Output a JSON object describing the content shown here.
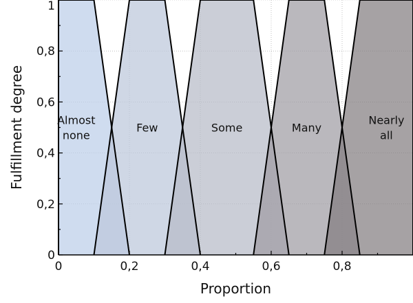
{
  "chart_data": {
    "type": "area",
    "xlabel": "Proportion",
    "ylabel": "Fulfillment degree",
    "xlim": [
      0,
      1
    ],
    "ylim": [
      0,
      1
    ],
    "x_ticks": [
      {
        "value": 0,
        "label": "0"
      },
      {
        "value": 0.2,
        "label": "0,2"
      },
      {
        "value": 0.4,
        "label": "0,4"
      },
      {
        "value": 0.6,
        "label": "0,6"
      },
      {
        "value": 0.8,
        "label": "0,8"
      }
    ],
    "y_ticks": [
      {
        "value": 0,
        "label": "0"
      },
      {
        "value": 0.2,
        "label": "0,2"
      },
      {
        "value": 0.4,
        "label": "0,4"
      },
      {
        "value": 0.6,
        "label": "0,6"
      },
      {
        "value": 0.8,
        "label": "0,8"
      },
      {
        "value": 1,
        "label": "1"
      }
    ],
    "grid": true,
    "series": [
      {
        "name": "Almost none",
        "label_lines": [
          "Almost",
          "none"
        ],
        "x": [
          0,
          0,
          0.1,
          0.2
        ],
        "y": [
          0,
          1,
          1,
          0
        ],
        "color": "#bccfe9"
      },
      {
        "name": "Few",
        "label_lines": [
          "Few"
        ],
        "x": [
          0.1,
          0.2,
          0.3,
          0.4
        ],
        "y": [
          0,
          1,
          1,
          0
        ],
        "color": "#bcc7db"
      },
      {
        "name": "Some",
        "label_lines": [
          "Some"
        ],
        "x": [
          0.3,
          0.4,
          0.55,
          0.65
        ],
        "y": [
          0,
          1,
          1,
          0
        ],
        "color": "#b7bbc8"
      },
      {
        "name": "Many",
        "label_lines": [
          "Many"
        ],
        "x": [
          0.55,
          0.65,
          0.75,
          0.85
        ],
        "y": [
          0,
          1,
          1,
          0
        ],
        "color": "#9f9ca4"
      },
      {
        "name": "Nearly all",
        "label_lines": [
          "Nearly",
          "all"
        ],
        "x": [
          0.75,
          0.85,
          1,
          1
        ],
        "y": [
          0,
          1,
          1,
          0
        ],
        "color": "#837e81"
      }
    ]
  }
}
